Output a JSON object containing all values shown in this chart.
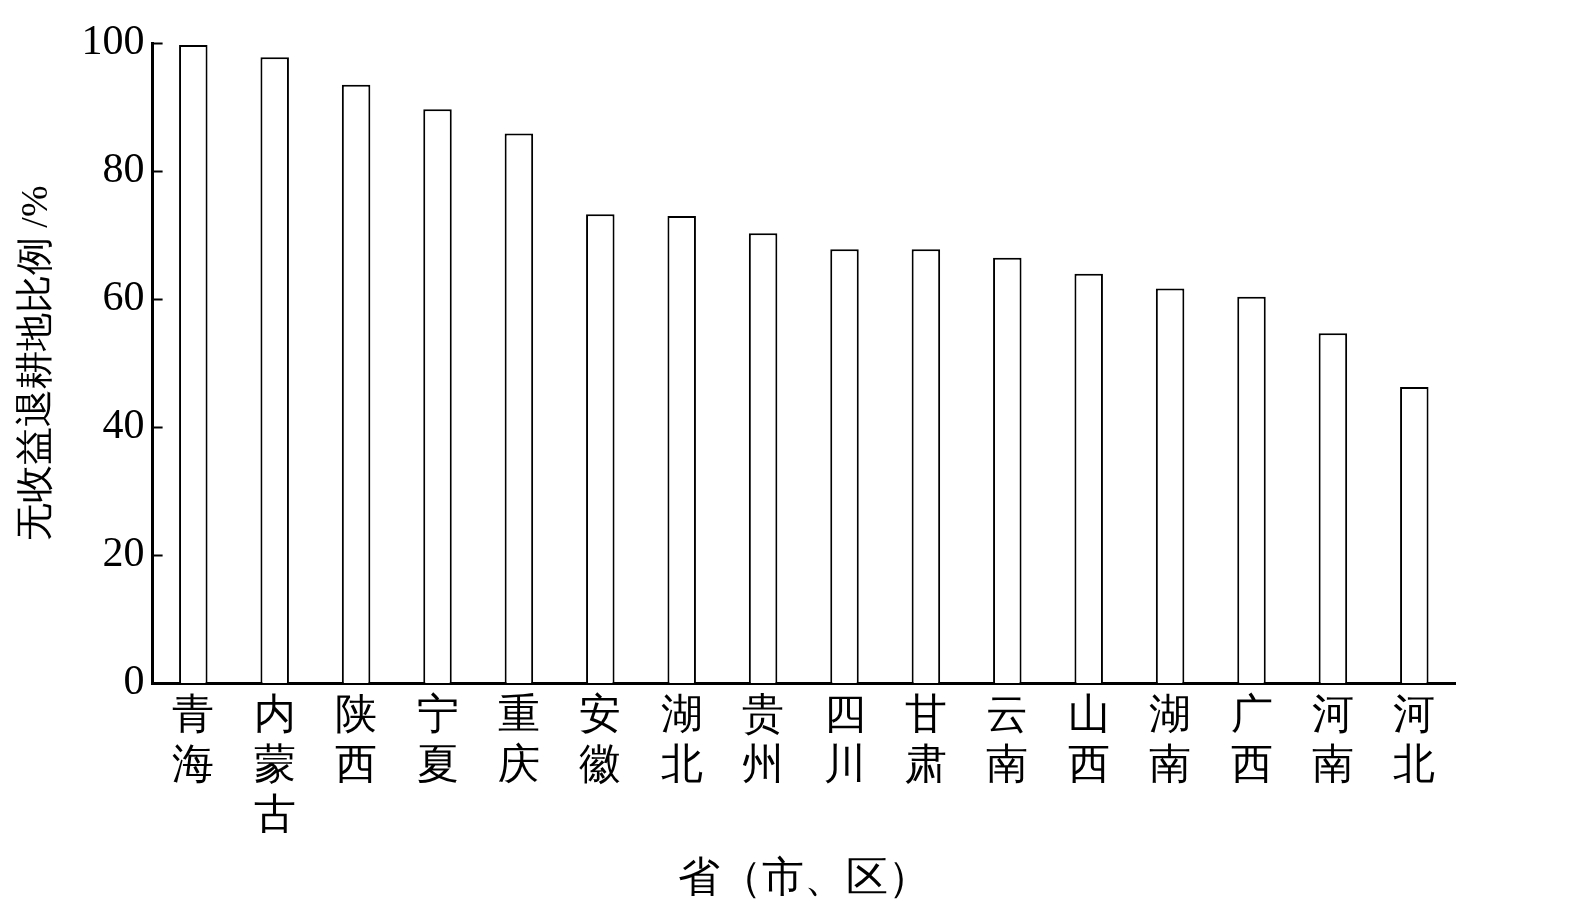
{
  "chart_data": {
    "type": "bar",
    "xlabel": "省（市、区）",
    "ylabel": "无收益退耕地比例 /%",
    "categories": [
      "青海",
      "内蒙古",
      "陕西",
      "宁夏",
      "重庆",
      "安徽",
      "湖北",
      "贵州",
      "四川",
      "甘肃",
      "云南",
      "山西",
      "湖南",
      "广西",
      "河南",
      "河北"
    ],
    "values": [
      99.7,
      97.8,
      93.5,
      89.7,
      85.9,
      73.3,
      73.0,
      70.3,
      67.8,
      67.8,
      66.5,
      64.0,
      61.7,
      60.4,
      54.7,
      46.3
    ],
    "color": "#ffffff",
    "ylim": [
      0,
      100
    ],
    "yticks": [
      0,
      20,
      40,
      60,
      80,
      100
    ],
    "grid": false,
    "legend": false
  }
}
